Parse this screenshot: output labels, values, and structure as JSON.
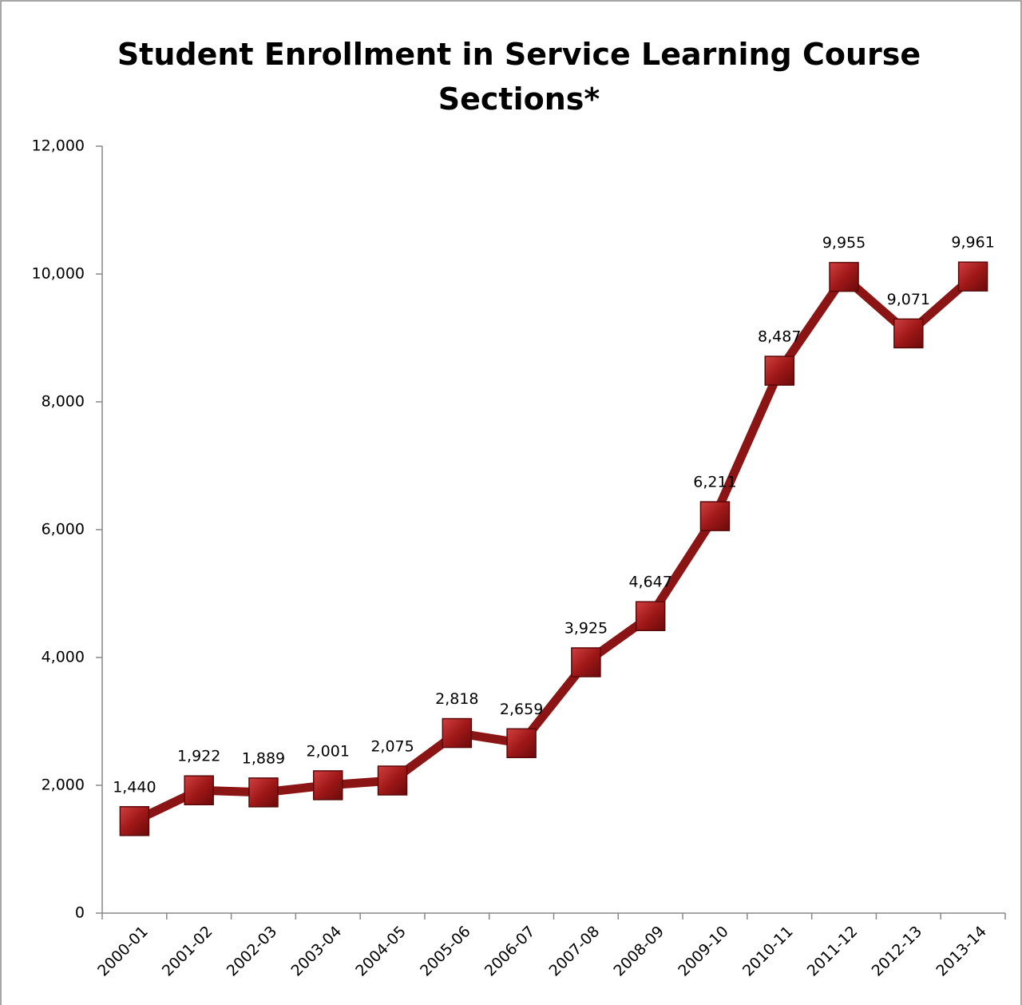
{
  "chart_data": {
    "type": "line",
    "title": "Student Enrollment in Service Learning Course Sections*",
    "categories": [
      "2000-01",
      "2001-02",
      "2002-03",
      "2003-04",
      "2004-05",
      "2005-06",
      "2006-07",
      "2007-08",
      "2008-09",
      "2009-10",
      "2010-11",
      "2011-12",
      "2012-13",
      "2013-14"
    ],
    "series": [
      {
        "name": "Student Enrollment",
        "color": "#8b1414",
        "values": [
          1440,
          1922,
          1889,
          2001,
          2075,
          2818,
          2659,
          3925,
          4647,
          6211,
          8487,
          9955,
          9071,
          9961
        ],
        "value_labels": [
          "1,440",
          "1,922",
          "1,889",
          "2,001",
          "2,075",
          "2,818",
          "2,659",
          "3,925",
          "4,647",
          "6,211",
          "8,487",
          "9,955",
          "9,071",
          "9,961"
        ]
      }
    ],
    "ylim": [
      0,
      12000
    ],
    "yticks": [
      0,
      {
        "value": 2000,
        "label": "2,000"
      },
      {
        "value": 4000,
        "label": "4,000"
      },
      {
        "value": 6000,
        "label": "6,000"
      },
      {
        "value": 8000,
        "label": "8,000"
      },
      {
        "value": 10000,
        "label": "10,000"
      },
      {
        "value": 12000,
        "label": "12,000"
      }
    ],
    "grid": false
  }
}
